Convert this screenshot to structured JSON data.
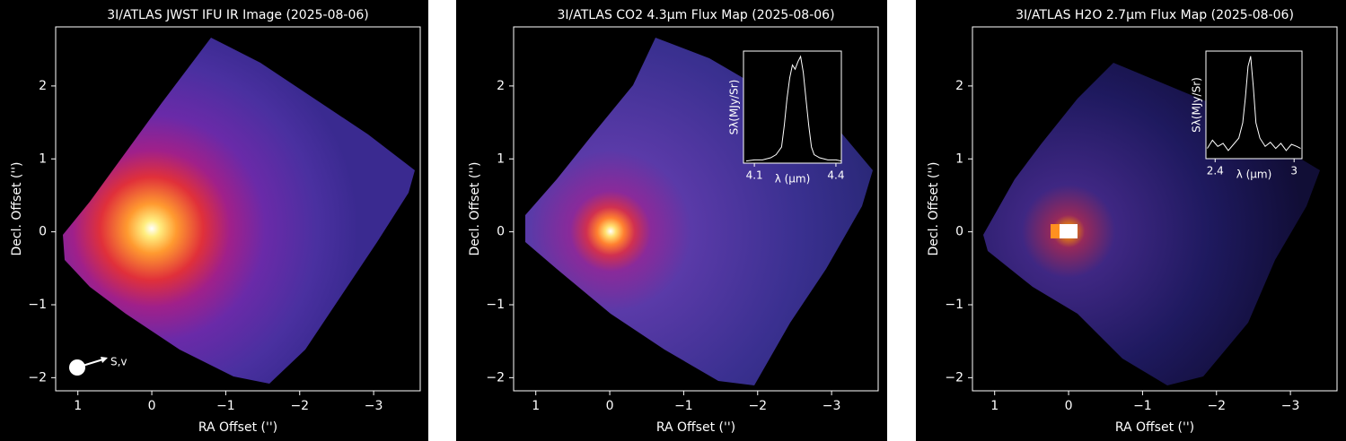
{
  "chart_data": [
    {
      "type": "heatmap",
      "title": "3I/ATLAS JWST IFU IR Image (2025-08-06)",
      "xlabel": "RA Offset ('')",
      "ylabel": "Decl. Offset ('')",
      "xlim": [
        1.3,
        -3.63
      ],
      "ylim": [
        -2.18,
        2.81
      ],
      "xticks": [
        1,
        0,
        {
          "value": -1,
          "label": "−1"
        },
        {
          "value": -2,
          "label": "−2"
        },
        {
          "value": -3,
          "label": "−3"
        }
      ],
      "yticks": [
        {
          "value": -2,
          "label": "−2"
        },
        {
          "value": -1,
          "label": "−1"
        },
        0,
        1,
        2
      ],
      "annotations": [
        "S,v"
      ]
    },
    {
      "type": "heatmap",
      "title": "3I/ATLAS CO2 4.3μm Flux Map (2025-08-06)",
      "xlabel": "RA Offset ('')",
      "ylabel": "Decl. Offset ('')",
      "xlim": [
        1.3,
        -3.63
      ],
      "ylim": [
        -2.18,
        2.81
      ],
      "xticks": [
        1,
        0,
        {
          "value": -1,
          "label": "−1"
        },
        {
          "value": -2,
          "label": "−2"
        },
        {
          "value": -3,
          "label": "−3"
        }
      ],
      "yticks": [
        {
          "value": -2,
          "label": "−2"
        },
        {
          "value": -1,
          "label": "−1"
        },
        0,
        1,
        2
      ],
      "inset": {
        "type": "line",
        "xlabel": "λ (μm)",
        "ylabel": "Sλ(MJy/Sr)",
        "color": "#ffffff",
        "xlim": [
          4.06,
          4.42
        ],
        "xticks": [
          4.1,
          4.4
        ],
        "ylim": [
          0,
          1.05
        ],
        "x": [
          4.07,
          4.1,
          4.13,
          4.16,
          4.18,
          4.2,
          4.21,
          4.22,
          4.23,
          4.24,
          4.25,
          4.26,
          4.27,
          4.28,
          4.29,
          4.3,
          4.31,
          4.32,
          4.34,
          4.37,
          4.4,
          4.42
        ],
        "values": [
          0.02,
          0.03,
          0.03,
          0.05,
          0.08,
          0.15,
          0.35,
          0.6,
          0.8,
          0.92,
          0.88,
          0.95,
          1.0,
          0.85,
          0.6,
          0.35,
          0.15,
          0.08,
          0.05,
          0.03,
          0.03,
          0.02
        ]
      }
    },
    {
      "type": "heatmap",
      "title": "3I/ATLAS H2O 2.7μm Flux Map (2025-08-06)",
      "xlabel": "RA Offset ('')",
      "ylabel": "Decl. Offset ('')",
      "xlim": [
        1.3,
        -3.63
      ],
      "ylim": [
        -2.18,
        2.81
      ],
      "xticks": [
        1,
        0,
        {
          "value": -1,
          "label": "−1"
        },
        {
          "value": -2,
          "label": "−2"
        },
        {
          "value": -3,
          "label": "−3"
        }
      ],
      "yticks": [
        {
          "value": -2,
          "label": "−2"
        },
        {
          "value": -1,
          "label": "−1"
        },
        0,
        1,
        2
      ],
      "inset": {
        "type": "line",
        "xlabel": "λ (μm)",
        "ylabel": "Sλ(MJy/Sr)",
        "color": "#ffffff",
        "xlim": [
          2.33,
          3.06
        ],
        "xticks": [
          2.4,
          3.0
        ],
        "ylim": [
          0,
          1.05
        ],
        "x": [
          2.34,
          2.38,
          2.42,
          2.46,
          2.5,
          2.54,
          2.58,
          2.61,
          2.63,
          2.65,
          2.67,
          2.69,
          2.71,
          2.74,
          2.78,
          2.82,
          2.86,
          2.9,
          2.94,
          2.98,
          3.02,
          3.05
        ],
        "values": [
          0.1,
          0.18,
          0.12,
          0.15,
          0.08,
          0.14,
          0.2,
          0.35,
          0.6,
          0.9,
          1.0,
          0.7,
          0.35,
          0.2,
          0.12,
          0.16,
          0.1,
          0.15,
          0.08,
          0.14,
          0.12,
          0.1
        ]
      }
    }
  ]
}
